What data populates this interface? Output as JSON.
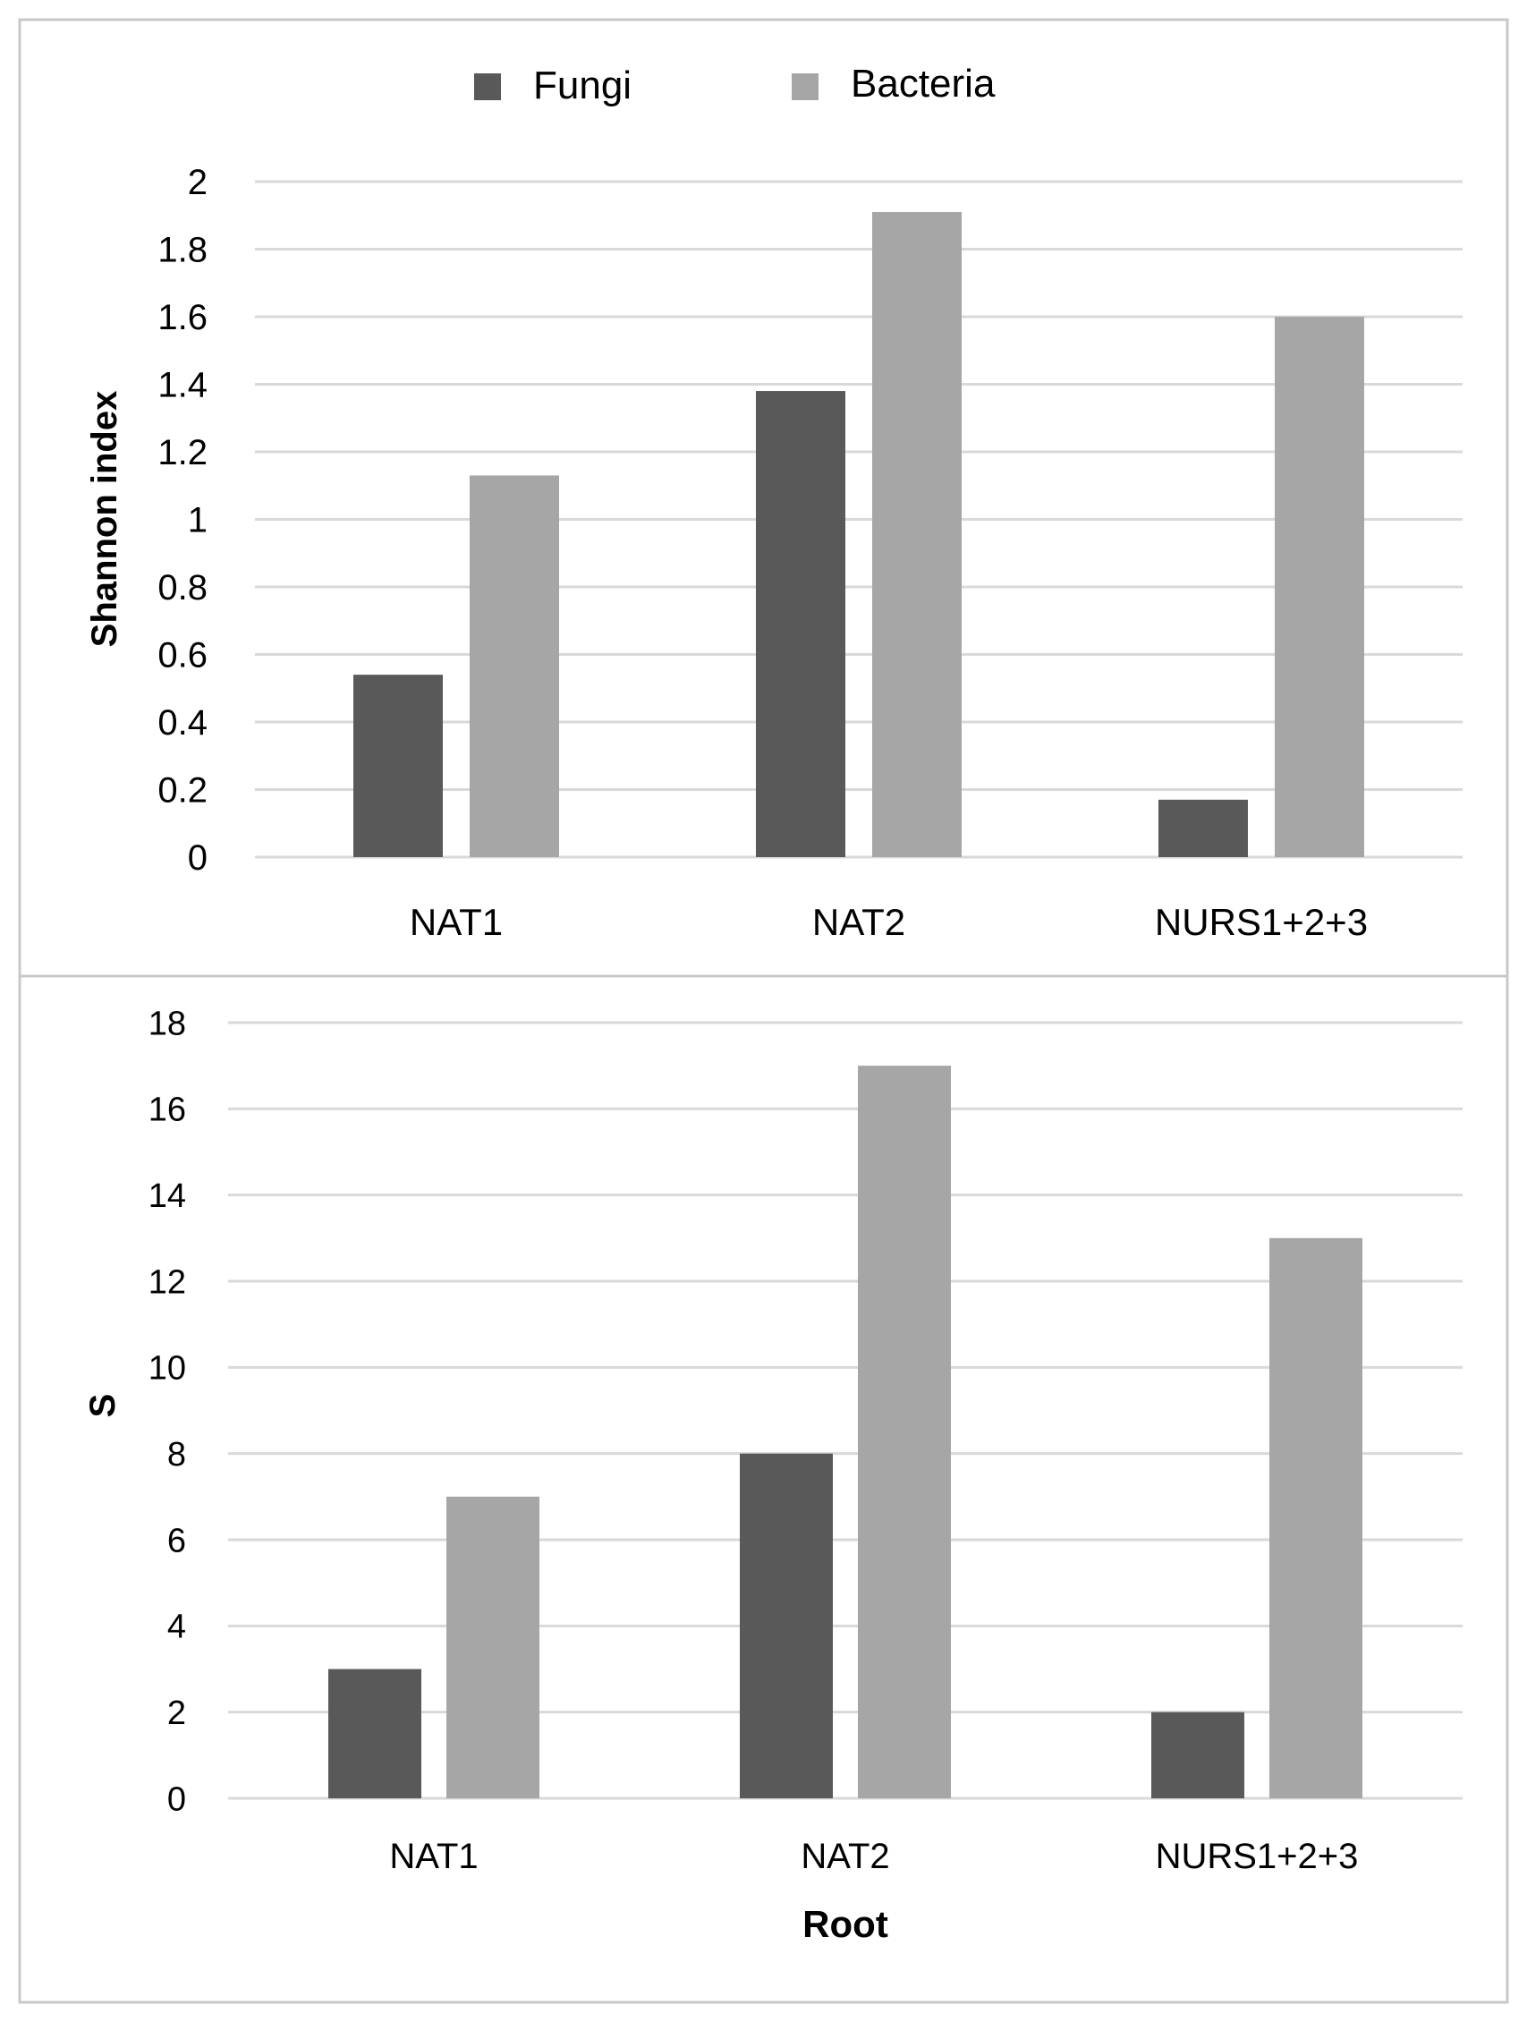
{
  "colors": {
    "fungi": "#595959",
    "bacteria": "#a6a6a6",
    "grid": "#d9d9d9",
    "border": "#c8c8c8",
    "text": "#000000"
  },
  "chart_data": [
    {
      "type": "bar",
      "categories": [
        "NAT1",
        "NAT2",
        "NURS1+2+3"
      ],
      "series": [
        {
          "name": "Fungi",
          "values": [
            0.54,
            1.38,
            0.17
          ]
        },
        {
          "name": "Bacteria",
          "values": [
            1.13,
            1.91,
            1.6
          ]
        }
      ],
      "ylabel": "Shannon index",
      "xlabel": "",
      "ylim": [
        0,
        2
      ],
      "ytick_step": 0.2,
      "yticks": [
        "0",
        "0.2",
        "0.4",
        "0.6",
        "0.8",
        "1",
        "1.2",
        "1.4",
        "1.6",
        "1.8",
        "2"
      ],
      "grid": true,
      "legend": "top-center"
    },
    {
      "type": "bar",
      "categories": [
        "NAT1",
        "NAT2",
        "NURS1+2+3"
      ],
      "series": [
        {
          "name": "Fungi",
          "values": [
            3,
            8,
            2
          ]
        },
        {
          "name": "Bacteria",
          "values": [
            7,
            17,
            13
          ]
        }
      ],
      "ylabel": "S",
      "xlabel": "Root",
      "ylim": [
        0,
        18
      ],
      "ytick_step": 2,
      "yticks": [
        "0",
        "2",
        "4",
        "6",
        "8",
        "10",
        "12",
        "14",
        "16",
        "18"
      ],
      "grid": true
    }
  ]
}
